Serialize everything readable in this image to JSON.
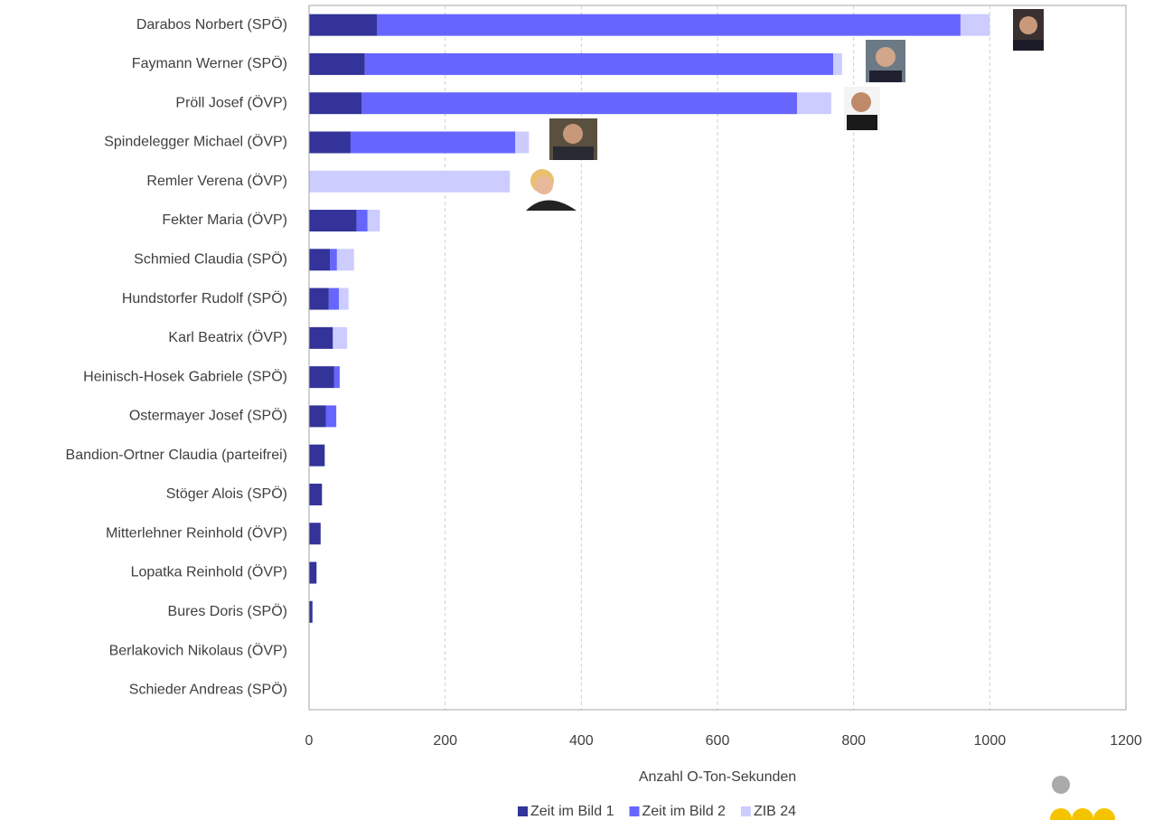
{
  "chart_data": {
    "type": "stacked-barh",
    "x_label": "Anzahl O-Ton-Sekunden",
    "categories": [
      "Darabos Norbert (SPÖ)",
      "Faymann Werner (SPÖ)",
      "Pröll Josef (ÖVP)",
      "Spindelegger Michael (ÖVP)",
      "Remler Verena (ÖVP)",
      "Fekter Maria (ÖVP)",
      "Schmied Claudia (SPÖ)",
      "Hundstorfer Rudolf (SPÖ)",
      "Karl Beatrix (ÖVP)",
      "Heinisch-Hosek Gabriele (SPÖ)",
      "Ostermayer Josef (SPÖ)",
      "Bandion-Ortner Claudia (parteifrei)",
      "Stöger Alois (SPÖ)",
      "Mitterlehner Reinhold (ÖVP)",
      "Lopatka Reinhold (ÖVP)",
      "Bures Doris (SPÖ)",
      "Berlakovich Nikolaus (ÖVP)",
      "Schieder Andreas (SPÖ)"
    ],
    "series": [
      {
        "name": "Zeit im Bild 1",
        "color": "#333399",
        "values": [
          100,
          82,
          77,
          61,
          0,
          70,
          31,
          29,
          35,
          37,
          25,
          23,
          19,
          17,
          11,
          5,
          0,
          0
        ]
      },
      {
        "name": "Zeit im Bild 2",
        "color": "#6666ff",
        "values": [
          857,
          688,
          640,
          242,
          0,
          16,
          10,
          15,
          0,
          8,
          15,
          0,
          0,
          0,
          0,
          0,
          0,
          0
        ]
      },
      {
        "name": "ZIB 24",
        "color": "#ccccff",
        "values": [
          43,
          13,
          50,
          20,
          295,
          18,
          25,
          14,
          21,
          0,
          0,
          0,
          0,
          0,
          0,
          0,
          0,
          0
        ]
      }
    ],
    "xlim": [
      0,
      1200
    ],
    "xticks": [
      0,
      200,
      400,
      600,
      800,
      1000,
      1200
    ],
    "grid": true
  }
}
